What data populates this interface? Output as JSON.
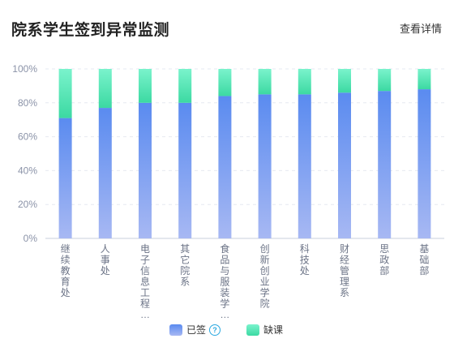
{
  "header": {
    "title": "院系学生签到异常监测",
    "detail_link": "查看详情"
  },
  "colors": {
    "signed_top": "#5a8bf0",
    "signed_bottom": "#a7b8f3",
    "absent_top": "#7af3cc",
    "absent_bottom": "#3cd9a2",
    "axis": "#c9cfdc",
    "grid": "#e6e9f0",
    "tick_text": "#8b93a8"
  },
  "chart_data": {
    "type": "bar",
    "stacked": true,
    "categories": [
      "继续教育处",
      "人事处",
      "电子信息工程…",
      "其它院系",
      "食品与服装学…",
      "创新创业学院",
      "科技处",
      "财经管理系",
      "思政部",
      "基础部"
    ],
    "series": [
      {
        "name": "已签",
        "values": [
          71,
          77,
          80,
          80,
          84,
          85,
          85,
          86,
          87,
          88
        ]
      },
      {
        "name": "缺课",
        "values": [
          29,
          23,
          20,
          20,
          16,
          15,
          15,
          14,
          13,
          12
        ]
      }
    ],
    "ylim": [
      0,
      100
    ],
    "yticks": [
      "0%",
      "20%",
      "40%",
      "60%",
      "80%",
      "100%"
    ],
    "grid": true,
    "legend_position": "bottom"
  },
  "legend": {
    "signed_label": "已签",
    "absent_label": "缺课",
    "help_glyph": "?"
  }
}
